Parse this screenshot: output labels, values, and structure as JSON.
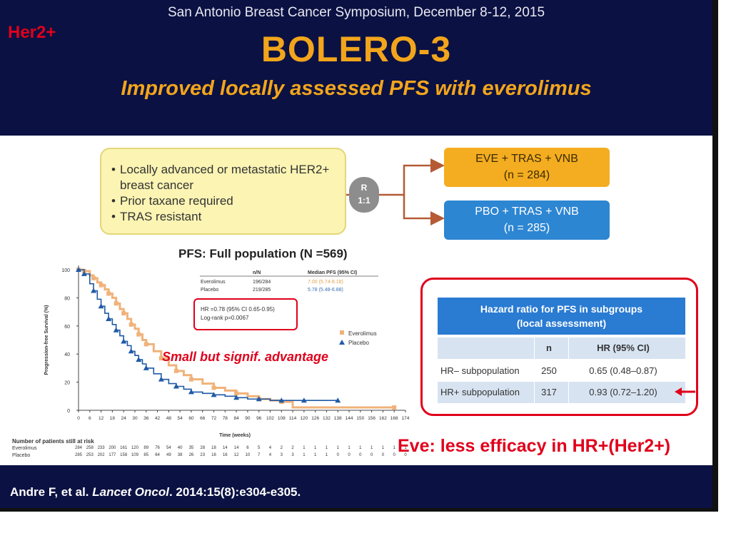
{
  "header": {
    "symposium": "San Antonio Breast Cancer Symposium, December 8-12, 2015",
    "tag": "Her2+",
    "trial": "BOLERO-3",
    "subtitle": "Improved locally assessed PFS with everolimus"
  },
  "design": {
    "criteria": [
      "Locally advanced or metastatic HER2+ breast cancer",
      "Prior taxane required",
      "TRAS resistant"
    ],
    "randomization_line1": "R",
    "randomization_line2": "1:1",
    "arm_eve_line1": "EVE + TRAS + VNB",
    "arm_eve_line2": "(n = 284)",
    "arm_pbo_line1": "PBO + TRAS + VNB",
    "arm_pbo_line2": "(n = 285)"
  },
  "km_stats": {
    "hr_line": "HR =0.78 (95% CI 0.65-0.95)",
    "logrank_line": "Log-rank p=0.0067"
  },
  "risk_table": {
    "title": "Number of patients still at risk",
    "rows": [
      {
        "label": "Everolimus",
        "values": [
          "284",
          "258",
          "233",
          "200",
          "161",
          "120",
          "89",
          "76",
          "54",
          "40",
          "35",
          "28",
          "18",
          "14",
          "14",
          "6",
          "5",
          "4",
          "2",
          "2",
          "1",
          "1",
          "1",
          "1",
          "1",
          "1",
          "1",
          "1",
          "1",
          "1"
        ]
      },
      {
        "label": "Placebo",
        "values": [
          "285",
          "253",
          "202",
          "177",
          "158",
          "109",
          "85",
          "64",
          "49",
          "38",
          "26",
          "23",
          "16",
          "16",
          "12",
          "10",
          "7",
          "4",
          "3",
          "3",
          "1",
          "1",
          "1",
          "0",
          "0",
          "0",
          "0",
          "0",
          "0",
          "0"
        ]
      }
    ]
  },
  "subgroups": {
    "title_line1": "Hazard ratio for PFS in subgroups",
    "title_line2": "(local assessment)",
    "col_n": "n",
    "col_hr": "HR (95% CI)",
    "rows": [
      {
        "name": "HR– subpopulation",
        "n": "250",
        "hr": "0.65 (0.48–0.87)"
      },
      {
        "name": "HR+ subpopulation",
        "n": "317",
        "hr": "0.93 (0.72–1.20)"
      }
    ]
  },
  "annotations": {
    "signif": "Small but signif. advantage",
    "eve": "Eve: less efficacy in HR+(Her2+)"
  },
  "citation": {
    "prefix": "Andre F, et al. ",
    "journal": "Lancet Oncol",
    "suffix": ". 2014:15(8):e304-e305."
  },
  "colors": {
    "navy": "#0b1142",
    "accent_orange": "#f2a51c",
    "annotation_red": "#e0001b",
    "everolimus": "#f0b27a",
    "placebo": "#1f5aa6"
  },
  "chart_data": {
    "type": "line",
    "title": "PFS: Full population (N =569)",
    "xlabel": "Time (weeks)",
    "ylabel": "Progression-free Survival (%)",
    "x_ticks": [
      0,
      6,
      12,
      18,
      24,
      30,
      36,
      42,
      48,
      54,
      60,
      66,
      72,
      78,
      84,
      90,
      96,
      102,
      108,
      114,
      120,
      126,
      132,
      138,
      144,
      150,
      156,
      162,
      168,
      174
    ],
    "y_ticks": [
      0,
      20,
      40,
      60,
      80,
      100
    ],
    "xlim": [
      0,
      174
    ],
    "ylim": [
      0,
      100
    ],
    "legend_position": "right",
    "series": [
      {
        "name": "Everolimus",
        "x": [
          0,
          3,
          6,
          8,
          10,
          12,
          14,
          16,
          18,
          20,
          22,
          24,
          26,
          28,
          30,
          32,
          34,
          36,
          40,
          44,
          48,
          52,
          56,
          60,
          66,
          72,
          78,
          84,
          90,
          96,
          102,
          108,
          114,
          168
        ],
        "y": [
          100,
          99,
          96,
          94,
          91,
          89,
          86,
          83,
          80,
          76,
          72,
          69,
          65,
          61,
          58,
          54,
          50,
          47,
          42,
          37,
          32,
          28,
          25,
          22,
          19,
          16,
          14,
          12,
          10,
          8,
          7,
          6,
          2,
          2
        ]
      },
      {
        "name": "Placebo",
        "x": [
          0,
          3,
          6,
          8,
          10,
          12,
          14,
          16,
          18,
          20,
          22,
          24,
          26,
          28,
          30,
          32,
          34,
          36,
          40,
          44,
          48,
          52,
          56,
          60,
          66,
          72,
          78,
          84,
          90,
          96,
          102,
          108,
          114,
          120,
          132,
          138
        ],
        "y": [
          100,
          97,
          90,
          85,
          79,
          74,
          69,
          65,
          61,
          57,
          53,
          49,
          46,
          42,
          39,
          36,
          33,
          30,
          26,
          22,
          19,
          17,
          15,
          13,
          12,
          11,
          10,
          9,
          8,
          8,
          7,
          7,
          7,
          7,
          7,
          7
        ]
      }
    ],
    "table": {
      "columns": [
        "",
        "n/N",
        "Median PFS (95% CI)"
      ],
      "rows": [
        [
          "Everolimus",
          "196/284",
          "7.00 (5.74-8.18)"
        ],
        [
          "Placebo",
          "219/285",
          "5.78 (5.48-6.88)"
        ]
      ]
    }
  }
}
